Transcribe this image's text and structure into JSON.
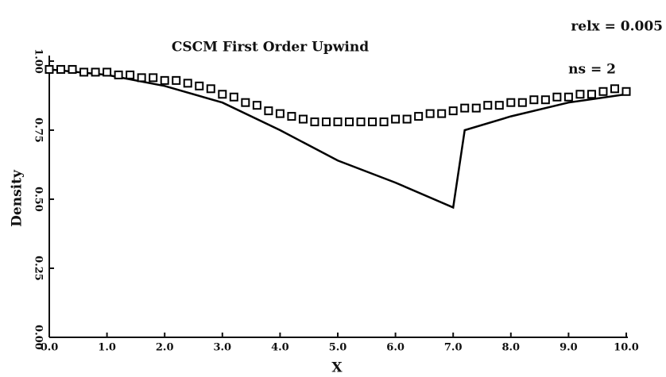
{
  "chart_data": {
    "type": "line",
    "title": "CSCM First Order Upwind",
    "xlabel": "X",
    "ylabel": "Density",
    "annotations": [
      "relx =  0.005",
      "ns =   2"
    ],
    "xlim": [
      0,
      10
    ],
    "ylim": [
      0,
      1
    ],
    "xticks": [
      {
        "value": 0,
        "label": "0.0"
      },
      {
        "value": 1,
        "label": "1.0"
      },
      {
        "value": 2,
        "label": "2.0"
      },
      {
        "value": 3,
        "label": "3.0"
      },
      {
        "value": 4,
        "label": "4.0"
      },
      {
        "value": 5,
        "label": "5.0"
      },
      {
        "value": 6,
        "label": "6.0"
      },
      {
        "value": 7,
        "label": "7.0"
      },
      {
        "value": 8,
        "label": "8.0"
      },
      {
        "value": 9,
        "label": "9.0"
      },
      {
        "value": 10,
        "label": "10.0"
      }
    ],
    "yticks": [
      {
        "value": 0,
        "label": "0.00"
      },
      {
        "value": 0.25,
        "label": "0.25"
      },
      {
        "value": 0.5,
        "label": "0.50"
      },
      {
        "value": 0.75,
        "label": "0.75"
      },
      {
        "value": 1,
        "label": "1.00"
      }
    ],
    "grid": false,
    "series": [
      {
        "color": "#000000",
        "marker": "none",
        "x": [
          0,
          1,
          2,
          3,
          4,
          5,
          6,
          7,
          7.2,
          8,
          9,
          10
        ],
        "values": [
          0.97,
          0.95,
          0.91,
          0.85,
          0.75,
          0.64,
          0.56,
          0.47,
          0.75,
          0.8,
          0.85,
          0.88
        ]
      },
      {
        "color": "#000000",
        "marker": "square",
        "x": [
          0,
          0.2,
          0.4,
          0.6,
          0.8,
          1,
          1.2,
          1.4,
          1.6,
          1.8,
          2,
          2.2,
          2.4,
          2.6,
          2.8,
          3,
          3.2,
          3.4,
          3.6,
          3.8,
          4,
          4.2,
          4.4,
          4.6,
          4.8,
          5,
          5.2,
          5.4,
          5.6,
          5.8,
          6,
          6.2,
          6.4,
          6.6,
          6.8,
          7,
          7.2,
          7.4,
          7.6,
          7.8,
          8,
          8.2,
          8.4,
          8.6,
          8.8,
          9,
          9.2,
          9.4,
          9.6,
          9.8,
          10
        ],
        "values": [
          0.97,
          0.97,
          0.97,
          0.96,
          0.96,
          0.96,
          0.95,
          0.95,
          0.94,
          0.94,
          0.93,
          0.93,
          0.92,
          0.91,
          0.9,
          0.88,
          0.87,
          0.85,
          0.84,
          0.82,
          0.81,
          0.8,
          0.79,
          0.78,
          0.78,
          0.78,
          0.78,
          0.78,
          0.78,
          0.78,
          0.79,
          0.79,
          0.8,
          0.81,
          0.81,
          0.82,
          0.83,
          0.83,
          0.84,
          0.84,
          0.85,
          0.85,
          0.86,
          0.86,
          0.87,
          0.87,
          0.88,
          0.88,
          0.89,
          0.9,
          0.89
        ]
      }
    ]
  }
}
